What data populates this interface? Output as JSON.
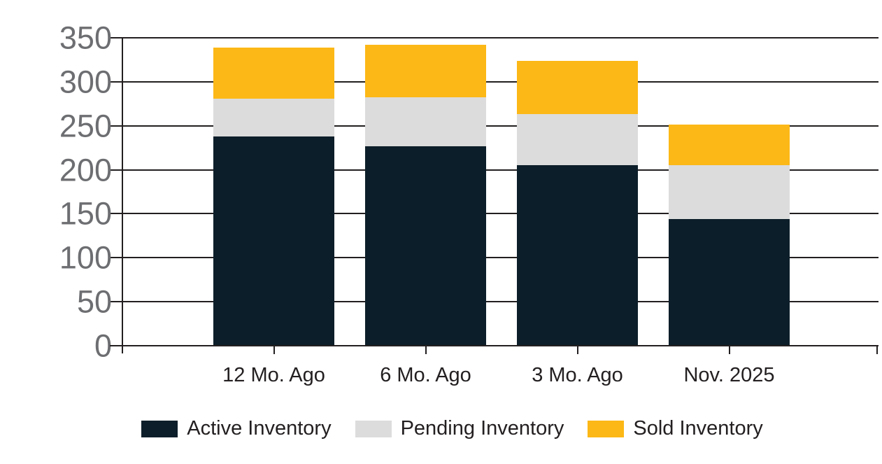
{
  "chart_data": {
    "type": "bar",
    "stacked": true,
    "title": "",
    "categories": [
      "12 Mo. Ago",
      "6 Mo. Ago",
      "3 Mo. Ago",
      "Nov. 2025"
    ],
    "series": [
      {
        "name": "Active Inventory",
        "color": "#0c1e29",
        "values": [
          238,
          227,
          205,
          144
        ]
      },
      {
        "name": "Pending Inventory",
        "color": "#dcdcdc",
        "values": [
          43,
          55,
          58,
          61
        ]
      },
      {
        "name": "Sold Inventory",
        "color": "#fcb816",
        "values": [
          58,
          60,
          61,
          46
        ]
      }
    ],
    "stack_totals": [
      339,
      342,
      324,
      251
    ],
    "y_axis": {
      "min": 0,
      "max": 350,
      "step": 50,
      "tick_labels": [
        "0",
        "50",
        "100",
        "150",
        "200",
        "250",
        "300",
        "350"
      ]
    },
    "x_axis": {
      "label": ""
    },
    "grid": true,
    "legend_position": "bottom"
  },
  "styles": {
    "background": "#ffffff",
    "axis_line_color": "#231f20",
    "gridline_color": "#231f20",
    "y_tick_label_color": "#6d6e71",
    "x_label_color": "#231f20",
    "legend_text_color": "#231f20",
    "active_color": "#0c1e29",
    "pending_color": "#dcdcdc",
    "sold_color": "#fcb816"
  }
}
